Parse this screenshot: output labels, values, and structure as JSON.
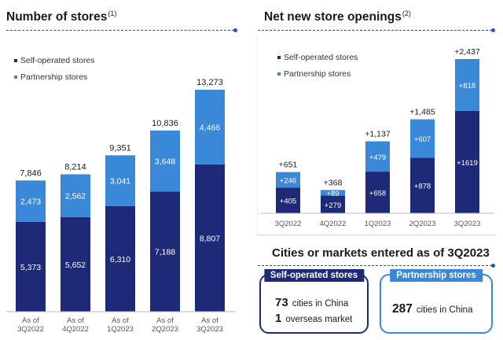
{
  "left_title": {
    "text": "Number of stores",
    "note": "(1)"
  },
  "right_title": {
    "text": "Net new store openings",
    "note": "(2)"
  },
  "cities_title": "Cities or markets entered as of 3Q2023",
  "colors": {
    "self_operated": "#1e2a78",
    "partnership": "#3a88d8",
    "rule": "#2f4fa8",
    "card_left_border": "#1e2a78",
    "card_right_border": "#3a88d8"
  },
  "chart_data": [
    {
      "type": "bar",
      "stacked": true,
      "title": "Number of stores",
      "categories": [
        "As of\n3Q2022",
        "As of\n4Q2022",
        "As of\n1Q2023",
        "As of\n2Q2023",
        "As of\n3Q2023"
      ],
      "series": [
        {
          "name": "Self-operated stores",
          "values": [
            5373,
            5652,
            6310,
            7188,
            8807
          ],
          "labels": [
            "5,373",
            "5,652",
            "6,310",
            "7,188",
            "8,807"
          ]
        },
        {
          "name": "Partnership stores",
          "values": [
            2473,
            2562,
            3041,
            3648,
            4466
          ],
          "labels": [
            "2,473",
            "2,562",
            "3,041",
            "3,648",
            "4,466"
          ]
        }
      ],
      "totals": [
        "7,846",
        "8,214",
        "9,351",
        "10,836",
        "13,273"
      ],
      "legend": [
        "Self-operated stores",
        "Partnership stores"
      ],
      "legend_position": "top-left",
      "ylim": [
        0,
        13273
      ],
      "grid": false
    },
    {
      "type": "bar",
      "stacked": true,
      "title": "Net new store openings",
      "categories": [
        "3Q2022",
        "4Q2022",
        "1Q2023",
        "2Q2023",
        "3Q2023"
      ],
      "series": [
        {
          "name": "Self-operated stores",
          "values": [
            405,
            279,
            658,
            878,
            1619
          ],
          "labels": [
            "+405",
            "+279",
            "+658",
            "+878",
            "+1619"
          ]
        },
        {
          "name": "Partnership stores",
          "values": [
            246,
            89,
            479,
            607,
            818
          ],
          "labels": [
            "+246",
            "+89",
            "+479",
            "+607",
            "+818"
          ]
        }
      ],
      "totals": [
        "+651",
        "+368",
        "+1,137",
        "+1,485",
        "+2,437"
      ],
      "legend": [
        "Self-operated stores",
        "Partnership stores"
      ],
      "legend_position": "top-left",
      "ylim": [
        0,
        2437
      ],
      "grid": false
    }
  ],
  "cards": [
    {
      "header": "Self-operated stores",
      "lines": [
        {
          "num": "73",
          "text": "cities in China"
        },
        {
          "num": "1",
          "text": "overseas market"
        }
      ]
    },
    {
      "header": "Partnership stores",
      "lines": [
        {
          "num": "287",
          "text": "cities in China"
        }
      ]
    }
  ]
}
